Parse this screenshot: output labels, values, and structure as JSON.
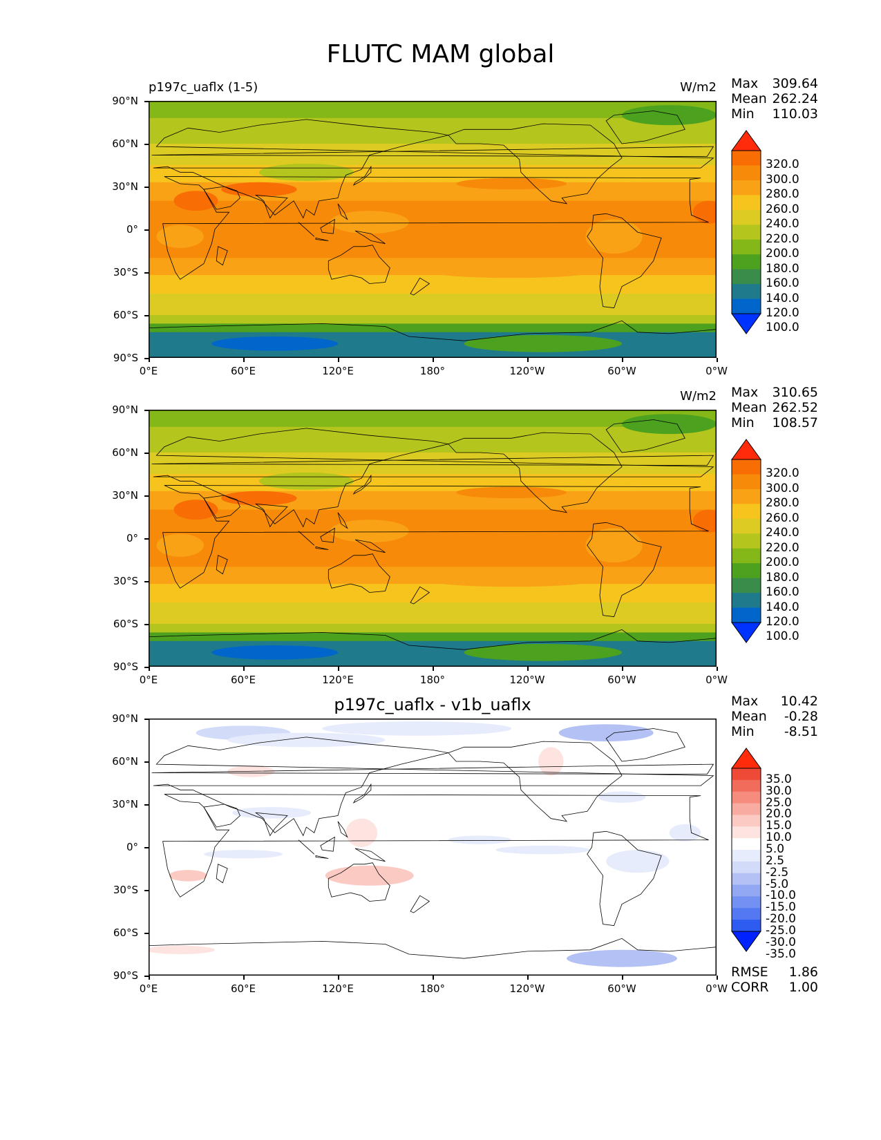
{
  "title": "FLUTC MAM global",
  "yticks": [
    "90°N",
    "60°N",
    "30°N",
    "0°",
    "30°S",
    "60°S",
    "90°S"
  ],
  "xticks": [
    "0°E",
    "60°E",
    "120°E",
    "180°",
    "120°W",
    "60°W",
    "0°W"
  ],
  "panels": [
    {
      "left_title": "p197c_uaflx (1-5)",
      "center_title": "",
      "units": "W/m2",
      "stats": {
        "max_label": "Max",
        "max": "309.64",
        "mean_label": "Mean",
        "mean": "262.24",
        "min_label": "Min",
        "min": "110.03"
      },
      "colorbar_labels": [
        "320.0",
        "300.0",
        "280.0",
        "260.0",
        "240.0",
        "220.0",
        "200.0",
        "180.0",
        "160.0",
        "140.0",
        "120.0",
        "100.0"
      ]
    },
    {
      "left_title": "",
      "center_title": "",
      "units": "W/m2",
      "stats": {
        "max_label": "Max",
        "max": "310.65",
        "mean_label": "Mean",
        "mean": "262.52",
        "min_label": "Min",
        "min": "108.57"
      },
      "colorbar_labels": [
        "320.0",
        "300.0",
        "280.0",
        "260.0",
        "240.0",
        "220.0",
        "200.0",
        "180.0",
        "160.0",
        "140.0",
        "120.0",
        "100.0"
      ]
    },
    {
      "left_title": "",
      "center_title": "p197c_uaflx - v1b_uaflx",
      "units": "",
      "stats": {
        "max_label": "Max",
        "max": "10.42",
        "mean_label": "Mean",
        "mean": "-0.28",
        "min_label": "Min",
        "min": "-8.51"
      },
      "colorbar_labels": [
        "35.0",
        "30.0",
        "25.0",
        "20.0",
        "15.0",
        "10.0",
        "5.0",
        "2.5",
        "-2.5",
        "-5.0",
        "-10.0",
        "-15.0",
        "-20.0",
        "-25.0",
        "-30.0",
        "-35.0"
      ],
      "bottom_stats": {
        "rmse_label": "RMSE",
        "rmse": "1.86",
        "corr_label": "CORR",
        "corr": "1.00"
      }
    }
  ],
  "colors": {
    "abs_scale": [
      "#0033ff",
      "#0066cc",
      "#1f7a8c",
      "#3a8c4a",
      "#4ca11e",
      "#84b818",
      "#b4c51e",
      "#dccb22",
      "#f7c41e",
      "#f9a215",
      "#f88a0a",
      "#f86d04",
      "#ff2b0a"
    ],
    "diff_scale": [
      "#0022ff",
      "#2f5cf0",
      "#5378f2",
      "#7391f2",
      "#93a8f2",
      "#b4c1f4",
      "#d2dbf7",
      "#e6ecfb",
      "#ffffff",
      "#fde4e0",
      "#fbcac3",
      "#f8aba0",
      "#f58c7e",
      "#f26c5c",
      "#ef4a38",
      "#ff2b0a"
    ]
  }
}
